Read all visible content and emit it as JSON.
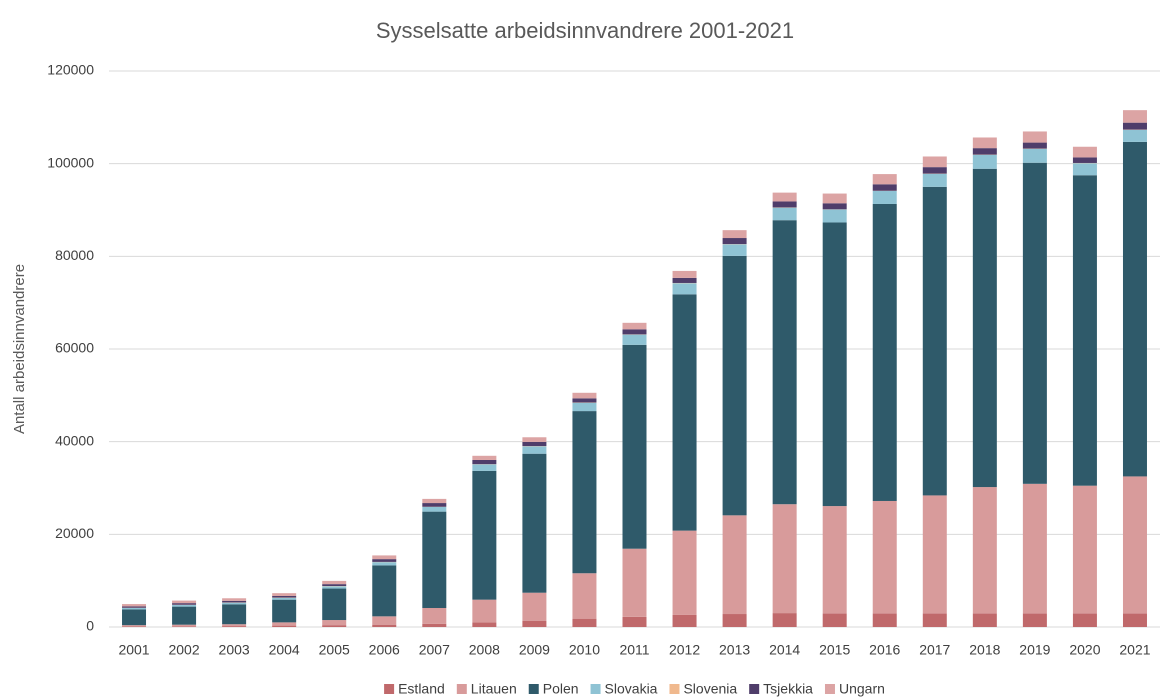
{
  "chart_data": {
    "type": "stacked_bar",
    "title": "Sysselsatte arbeidsinnvandrere 2001-2021",
    "y_label": "Antall arbeidsinnvandrere",
    "categories": [
      "2001",
      "2002",
      "2003",
      "2004",
      "2005",
      "2006",
      "2007",
      "2008",
      "2009",
      "2010",
      "2011",
      "2012",
      "2013",
      "2014",
      "2015",
      "2016",
      "2017",
      "2018",
      "2019",
      "2020",
      "2021"
    ],
    "series": [
      {
        "name": "Estland",
        "color": "#c0696b",
        "values": [
          100,
          150,
          200,
          300,
          400,
          500,
          700,
          1000,
          1300,
          1800,
          2200,
          2600,
          2800,
          3000,
          2900,
          2900,
          2900,
          2900,
          2900,
          2900,
          2900
        ]
      },
      {
        "name": "Litauen",
        "color": "#d89b9b",
        "values": [
          300,
          350,
          400,
          700,
          1100,
          1800,
          3400,
          4900,
          6100,
          9800,
          14700,
          18200,
          21300,
          23500,
          23200,
          24300,
          25500,
          27300,
          28000,
          27600,
          29600
        ]
      },
      {
        "name": "Polen",
        "color": "#2f5a6a",
        "values": [
          3400,
          3900,
          4300,
          4900,
          6800,
          11000,
          20800,
          27800,
          30000,
          35000,
          44000,
          51000,
          56000,
          61300,
          61200,
          64100,
          66600,
          68700,
          69300,
          67000,
          72200
        ]
      },
      {
        "name": "Slovakia",
        "color": "#8fc3d4",
        "values": [
          300,
          350,
          350,
          400,
          500,
          700,
          1000,
          1400,
          1600,
          1800,
          2200,
          2400,
          2500,
          2700,
          2800,
          2800,
          2800,
          3000,
          3000,
          2600,
          2600
        ]
      },
      {
        "name": "Slovenia",
        "color": "#f0b98e",
        "values": [
          50,
          50,
          50,
          50,
          50,
          50,
          50,
          50,
          50,
          50,
          50,
          50,
          50,
          50,
          50,
          50,
          50,
          50,
          50,
          50,
          50
        ]
      },
      {
        "name": "Tsjekkia",
        "color": "#4f3d6a",
        "values": [
          300,
          350,
          350,
          350,
          400,
          600,
          800,
          900,
          900,
          900,
          1100,
          1100,
          1300,
          1300,
          1300,
          1400,
          1400,
          1400,
          1300,
          1200,
          1500
        ]
      },
      {
        "name": "Ungarn",
        "color": "#dca4a4",
        "values": [
          500,
          550,
          550,
          600,
          700,
          800,
          900,
          900,
          1000,
          1200,
          1400,
          1500,
          1700,
          1900,
          2100,
          2200,
          2300,
          2300,
          2400,
          2300,
          2700
        ]
      }
    ],
    "ylim": [
      0,
      120000
    ],
    "yticks": [
      0,
      20000,
      40000,
      60000,
      80000,
      100000,
      120000
    ],
    "grid": true,
    "legend": "bottom"
  }
}
